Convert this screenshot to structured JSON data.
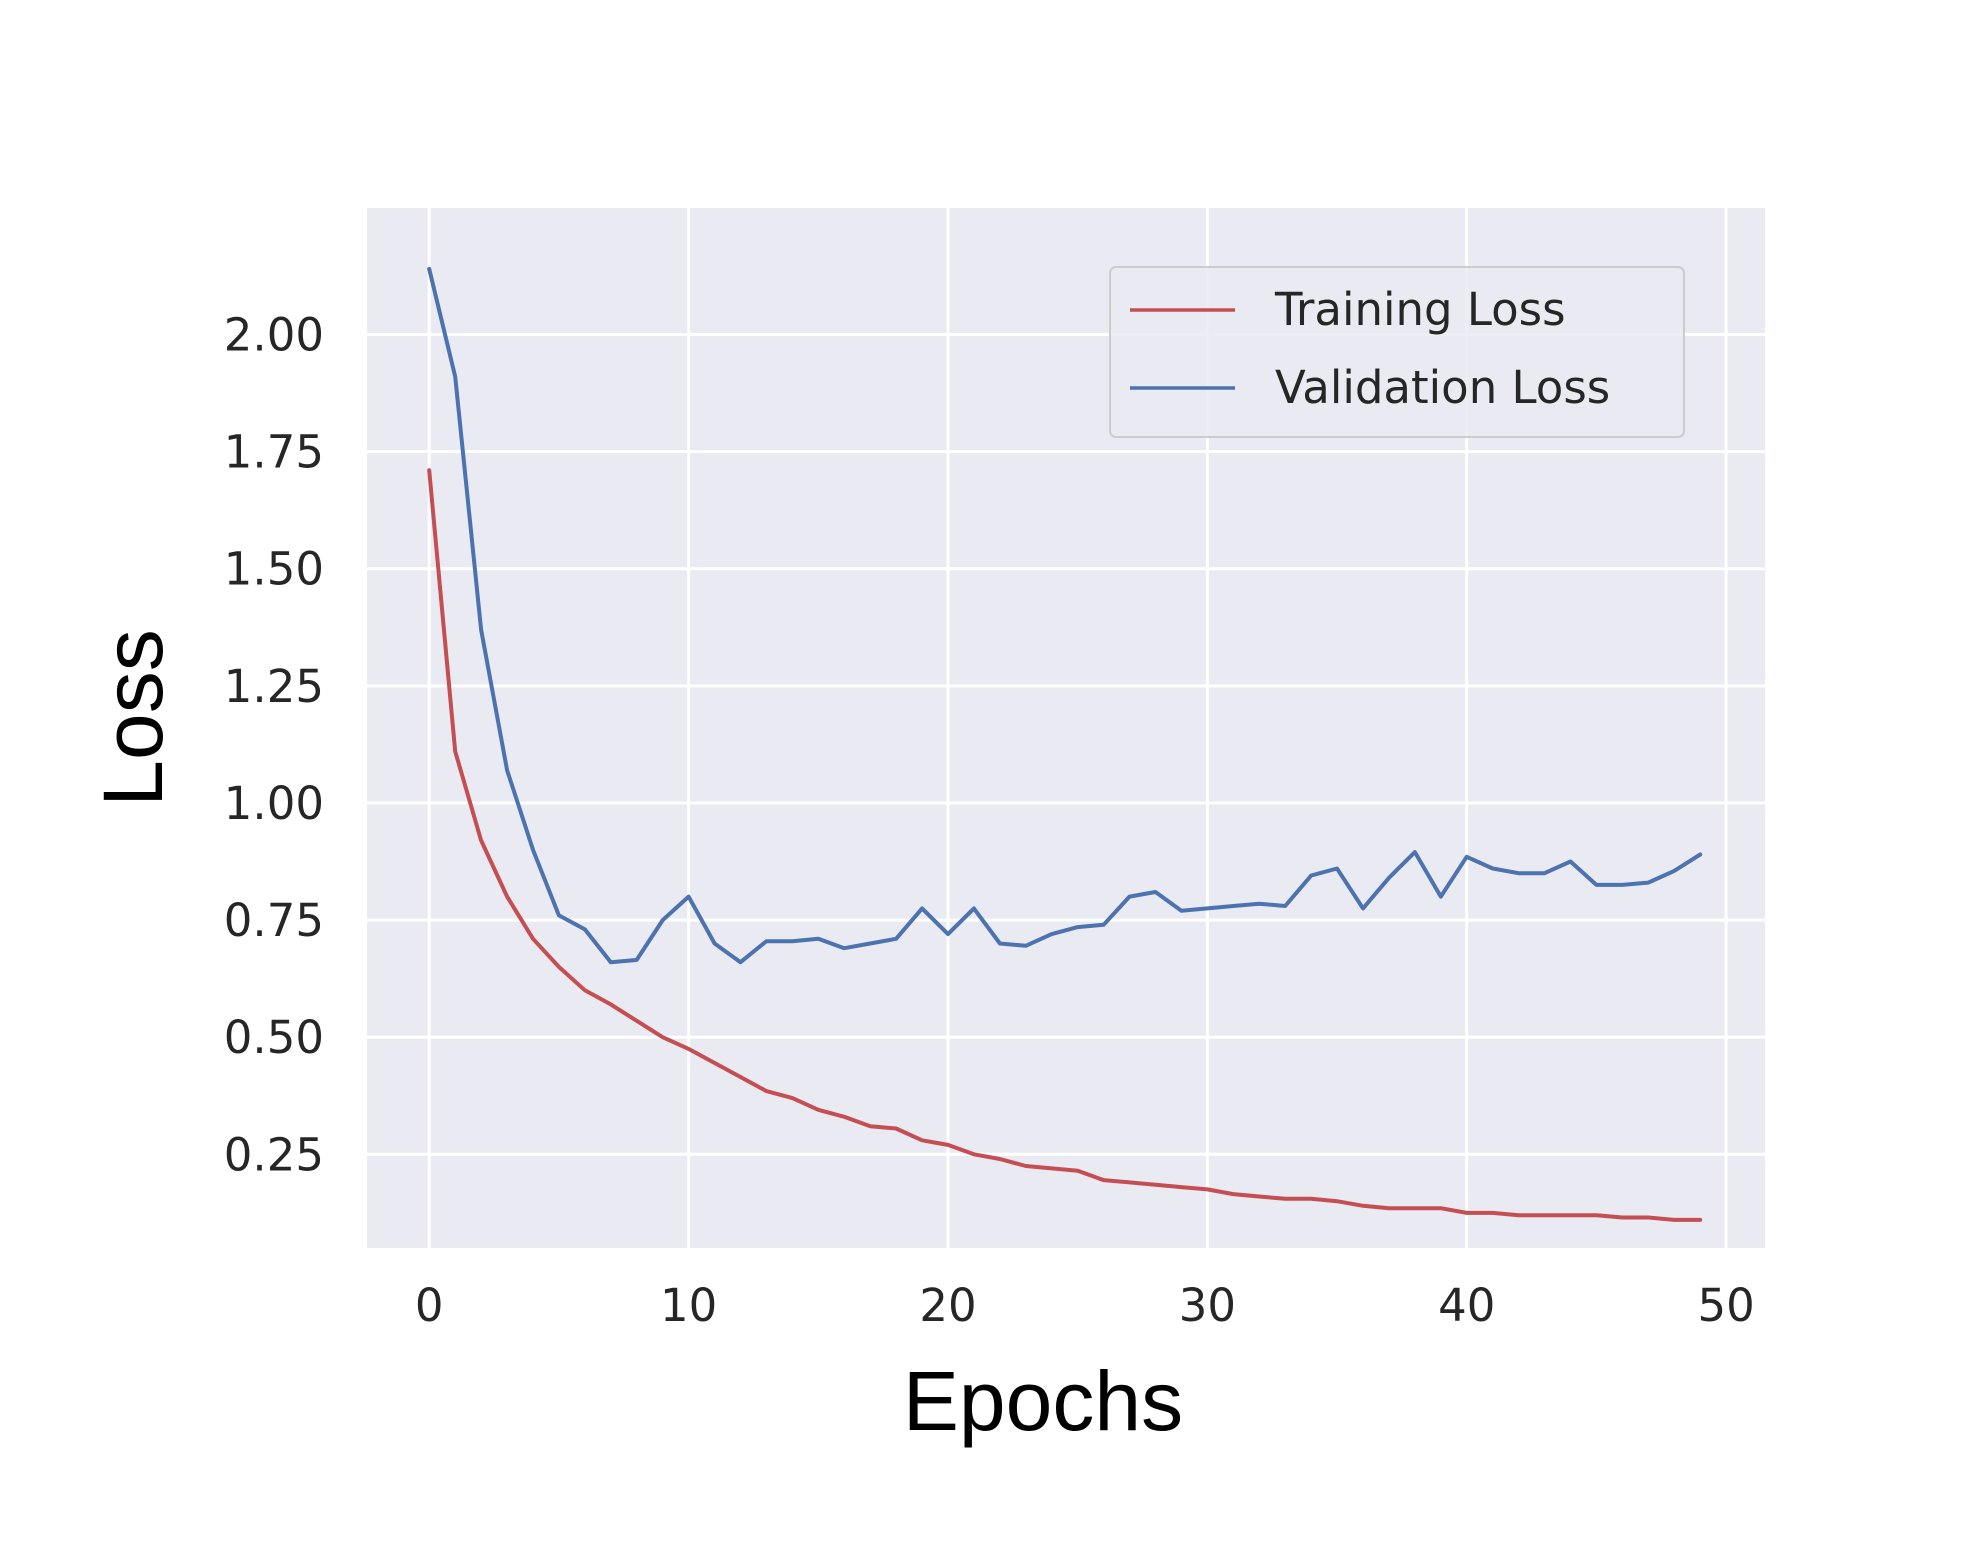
{
  "chart_data": {
    "type": "line",
    "title": "",
    "xlabel": "Epochs",
    "ylabel": "Loss",
    "xlim": [
      -2.4,
      51.5
    ],
    "ylim": [
      0.05,
      2.27
    ],
    "xticks": [
      0,
      10,
      20,
      30,
      40,
      50
    ],
    "xtick_labels": [
      "0",
      "10",
      "20",
      "30",
      "40",
      "50"
    ],
    "yticks": [
      0.25,
      0.5,
      0.75,
      1.0,
      1.25,
      1.5,
      1.75,
      2.0
    ],
    "ytick_labels": [
      "0.25",
      "0.50",
      "0.75",
      "1.00",
      "1.25",
      "1.50",
      "1.75",
      "2.00"
    ],
    "grid": true,
    "legend_position": "top-right",
    "x": [
      0,
      1,
      2,
      3,
      4,
      5,
      6,
      7,
      8,
      9,
      10,
      11,
      12,
      13,
      14,
      15,
      16,
      17,
      18,
      19,
      20,
      21,
      22,
      23,
      24,
      25,
      26,
      27,
      28,
      29,
      30,
      31,
      32,
      33,
      34,
      35,
      36,
      37,
      38,
      39,
      40,
      41,
      42,
      43,
      44,
      45,
      46,
      47,
      48,
      49
    ],
    "series": [
      {
        "name": "Training Loss",
        "color": "#c44e52",
        "values": [
          1.71,
          1.11,
          0.92,
          0.8,
          0.71,
          0.65,
          0.6,
          0.57,
          0.535,
          0.5,
          0.475,
          0.445,
          0.415,
          0.385,
          0.37,
          0.345,
          0.33,
          0.31,
          0.305,
          0.28,
          0.27,
          0.25,
          0.24,
          0.225,
          0.22,
          0.215,
          0.195,
          0.19,
          0.185,
          0.18,
          0.175,
          0.165,
          0.16,
          0.155,
          0.155,
          0.15,
          0.14,
          0.135,
          0.135,
          0.135,
          0.125,
          0.125,
          0.12,
          0.12,
          0.12,
          0.12,
          0.115,
          0.115,
          0.11,
          0.11
        ]
      },
      {
        "name": "Validation Loss",
        "color": "#4c72b0",
        "values": [
          2.14,
          1.91,
          1.37,
          1.07,
          0.9,
          0.76,
          0.73,
          0.66,
          0.665,
          0.75,
          0.8,
          0.7,
          0.66,
          0.705,
          0.705,
          0.71,
          0.69,
          0.7,
          0.71,
          0.775,
          0.72,
          0.775,
          0.7,
          0.695,
          0.72,
          0.735,
          0.74,
          0.8,
          0.81,
          0.77,
          0.775,
          0.78,
          0.785,
          0.78,
          0.845,
          0.86,
          0.775,
          0.84,
          0.895,
          0.8,
          0.885,
          0.86,
          0.85,
          0.85,
          0.875,
          0.825,
          0.825,
          0.83,
          0.855,
          0.89
        ]
      }
    ]
  }
}
